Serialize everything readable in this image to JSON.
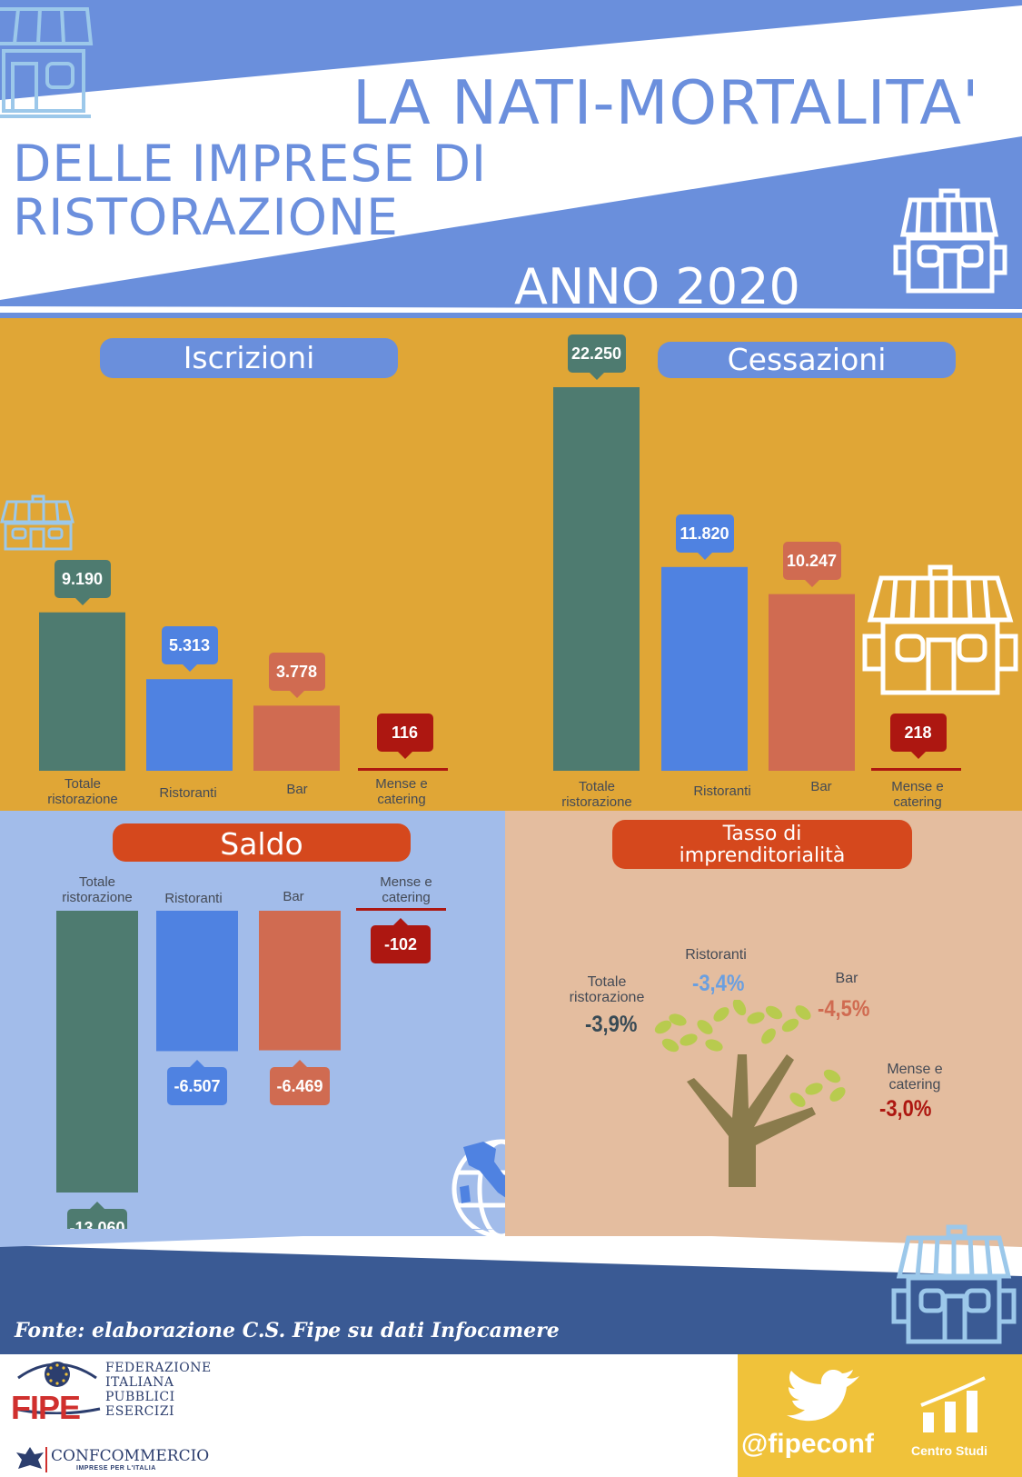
{
  "title": {
    "line1": "LA NATI-MORTALITA'",
    "line2": "DELLE IMPRESE DI",
    "line3": "RISTORAZIONE",
    "year": "ANNO 2020"
  },
  "colors": {
    "totale": "#4e7b70",
    "ristoranti": "#4f82e1",
    "bar": "#d06b51",
    "mense": "#ad1711",
    "panel_top": "#e0a636",
    "panel_saldo": "#a2bcea",
    "panel_tasso": "#e4bd9f"
  },
  "chart_data": [
    {
      "type": "bar",
      "title": "Iscrizioni",
      "categories": [
        "Totale ristorazione",
        "Ristoranti",
        "Bar",
        "Mense e catering"
      ],
      "values": [
        9190,
        5313,
        3778,
        116
      ],
      "value_labels": [
        "9.190",
        "5.313",
        "3.778",
        "116"
      ]
    },
    {
      "type": "bar",
      "title": "Cessazioni",
      "categories": [
        "Totale ristorazione",
        "Ristoranti",
        "Bar",
        "Mense e catering"
      ],
      "values": [
        22250,
        11820,
        10247,
        218
      ],
      "value_labels": [
        "22.250",
        "11.820",
        "10.247",
        "218"
      ]
    },
    {
      "type": "bar",
      "title": "Saldo",
      "categories": [
        "Totale ristorazione",
        "Ristoranti",
        "Bar",
        "Mense e catering"
      ],
      "values": [
        -13060,
        -6507,
        -6469,
        -102
      ],
      "value_labels": [
        "-13.060",
        "-6.507",
        "-6.469",
        "-102"
      ]
    },
    {
      "type": "table",
      "title": "Tasso di imprenditorialità",
      "categories": [
        "Totale ristorazione",
        "Ristoranti",
        "Bar",
        "Mense e catering"
      ],
      "values": [
        -3.9,
        -3.4,
        -4.5,
        -3.0
      ],
      "value_labels": [
        "-3,9%",
        "-3,4%",
        "-4,5%",
        "-3,0%"
      ]
    }
  ],
  "labels": {
    "totale_l1": "Totale",
    "totale_l2": "ristorazione",
    "ristoranti": "Ristoranti",
    "bar": "Bar",
    "mense_l1": "Mense e",
    "mense_l2": "catering",
    "tasso_l1": "Tasso di",
    "tasso_l2": "imprenditorialità"
  },
  "footer": {
    "source": "Fonte: elaborazione C.S. Fipe su dati Infocamere",
    "fipe_lines": [
      "FEDERAZIONE",
      "ITALIANA",
      "PUBBLICI",
      "ESERCIZI"
    ],
    "fipe_word": "FIPE",
    "confcommercio": "CONFCOMMERCIO",
    "confcommercio_sub": "IMPRESE PER L'ITALIA",
    "handle": "@fipeconf",
    "centro": "Centro Studi"
  },
  "icons": [
    "shop-icon",
    "twitter-bird-icon",
    "bar-chart-icon",
    "italy-globe-icon",
    "tree-icon",
    "fipe-logo",
    "confcommercio-logo"
  ]
}
